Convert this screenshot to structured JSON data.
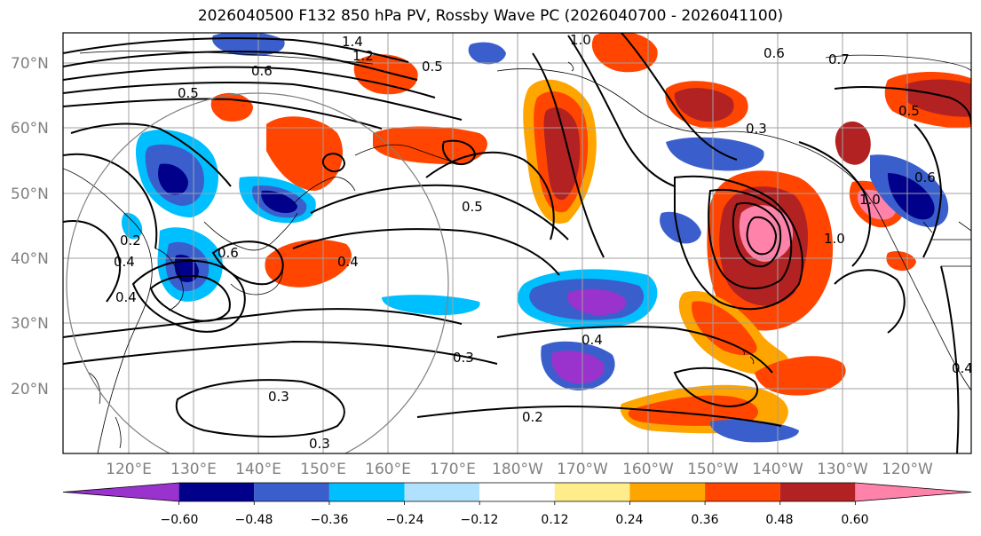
{
  "title": "2026040500 F132 850 hPa PV, Rossby Wave PC (2026040700 - 2026041100)",
  "map": {
    "lat_labels": [
      "70°N",
      "60°N",
      "50°N",
      "40°N",
      "30°N",
      "20°N"
    ],
    "lon_labels": [
      "120°E",
      "130°E",
      "140°E",
      "150°E",
      "160°E",
      "170°E",
      "180°W",
      "170°W",
      "160°W",
      "150°W",
      "140°W",
      "130°W",
      "120°W"
    ],
    "contour_labels": [
      "1.4",
      "1.2",
      "0.6",
      "0.5",
      "1.0",
      "0.6",
      "0.7",
      "0.5",
      "0.3",
      "0.4",
      "0.6",
      "0.4",
      "0.2",
      "0.4",
      "0.5",
      "1.0",
      "0.4",
      "0.3",
      "0.3",
      "0.2",
      "0.3",
      "0.6",
      "1.0",
      "0.5",
      "0.4"
    ]
  },
  "colorbar": {
    "tick_labels": [
      "−0.60",
      "−0.48",
      "−0.36",
      "−0.24",
      "−0.12",
      "0.12",
      "0.24",
      "0.36",
      "0.48",
      "0.60"
    ],
    "colors": [
      "#9a32cd",
      "#00008b",
      "#3a5fcd",
      "#00bfff",
      "#b0e2ff",
      "#ffffff",
      "#ffec8b",
      "#ffa500",
      "#ff4500",
      "#b22222",
      "#ff82ab"
    ]
  }
}
